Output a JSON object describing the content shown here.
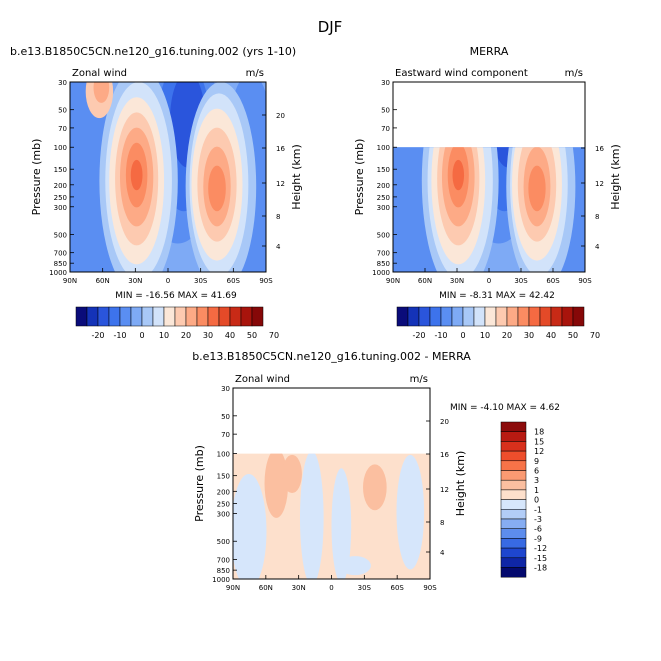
{
  "figure_title": "DJF",
  "chart_data": [
    {
      "type": "contour",
      "title": "b.e13.B1850C5CN.ne120_g16.tuning.002 (yrs 1-10)",
      "variable": "Zonal wind",
      "units": "m/s",
      "ylabel": "Pressure (mb)",
      "ylabel_right": "Height (km)",
      "x_ticks": [
        "90N",
        "60N",
        "30N",
        "0",
        "30S",
        "60S",
        "90S"
      ],
      "y_ticks": [
        "30",
        "50",
        "70",
        "100",
        "150",
        "200",
        "250",
        "300",
        "500",
        "700",
        "850",
        "1000"
      ],
      "height_ticks": [
        "20",
        "16",
        "12",
        "8",
        "4"
      ],
      "stats": "MIN = -16.56  MAX = 41.69",
      "pressure_range": [
        30,
        1000
      ],
      "jets": [
        {
          "lat": "30N",
          "pressure": 200,
          "max": 41.69
        },
        {
          "lat": "45S",
          "pressure": 250,
          "max": 35
        }
      ]
    },
    {
      "type": "contour",
      "title": "MERRA",
      "variable": "Eastward wind component",
      "units": "m/s",
      "ylabel": "Pressure (mb)",
      "ylabel_right": "Height (km)",
      "x_ticks": [
        "90N",
        "60N",
        "30N",
        "0",
        "30S",
        "60S",
        "90S"
      ],
      "y_ticks": [
        "30",
        "50",
        "70",
        "100",
        "150",
        "200",
        "250",
        "300",
        "500",
        "700",
        "850",
        "1000"
      ],
      "height_ticks": [
        "16",
        "12",
        "8",
        "4"
      ],
      "stats": "MIN = -8.31  MAX = 42.42",
      "pressure_range": [
        100,
        1000
      ],
      "jets": [
        {
          "lat": "30N",
          "pressure": 200,
          "max": 42.42
        },
        {
          "lat": "45S",
          "pressure": 250,
          "max": 33
        }
      ]
    },
    {
      "type": "contour",
      "title": "b.e13.B1850C5CN.ne120_g16.tuning.002 - MERRA",
      "variable": "Zonal wind",
      "units": "m/s",
      "ylabel": "Pressure (mb)",
      "ylabel_right": "Height (km)",
      "x_ticks": [
        "90N",
        "60N",
        "30N",
        "0",
        "30S",
        "60S",
        "90S"
      ],
      "y_ticks": [
        "30",
        "50",
        "70",
        "100",
        "150",
        "200",
        "250",
        "300",
        "500",
        "700",
        "850",
        "1000"
      ],
      "height_ticks": [
        "20",
        "16",
        "12",
        "8",
        "4"
      ],
      "stats": "MIN = -4.10  MAX =  4.62",
      "pressure_range": [
        100,
        1000
      ]
    }
  ],
  "colorbar_main": {
    "labels": [
      "-20",
      "-10",
      "0",
      "10",
      "20",
      "30",
      "40",
      "50",
      "70"
    ],
    "colors": [
      "#0a0c7a",
      "#1433b8",
      "#2a55dc",
      "#3d73ec",
      "#5a8ef2",
      "#7eaaf5",
      "#a8c8f7",
      "#d2e3fa",
      "#fbe7d8",
      "#fdcab0",
      "#fdaa86",
      "#fb8c62",
      "#f56a42",
      "#e44a28",
      "#c82a16",
      "#a8140c",
      "#860808"
    ]
  },
  "colorbar_diff": {
    "labels": [
      "18",
      "15",
      "12",
      "9",
      "6",
      "3",
      "1",
      "0",
      "-1",
      "-3",
      "-6",
      "-9",
      "-12",
      "-15",
      "-18"
    ],
    "colors": [
      "#8c0b0b",
      "#b81a12",
      "#d8301c",
      "#ee4e2c",
      "#f77348",
      "#fa9a72",
      "#fbbfa0",
      "#fde0cc",
      "#d6e6fb",
      "#b2cdf7",
      "#86adf2",
      "#5d8ded",
      "#386ae3",
      "#1e46cf",
      "#0f26a6",
      "#040a6e"
    ]
  }
}
